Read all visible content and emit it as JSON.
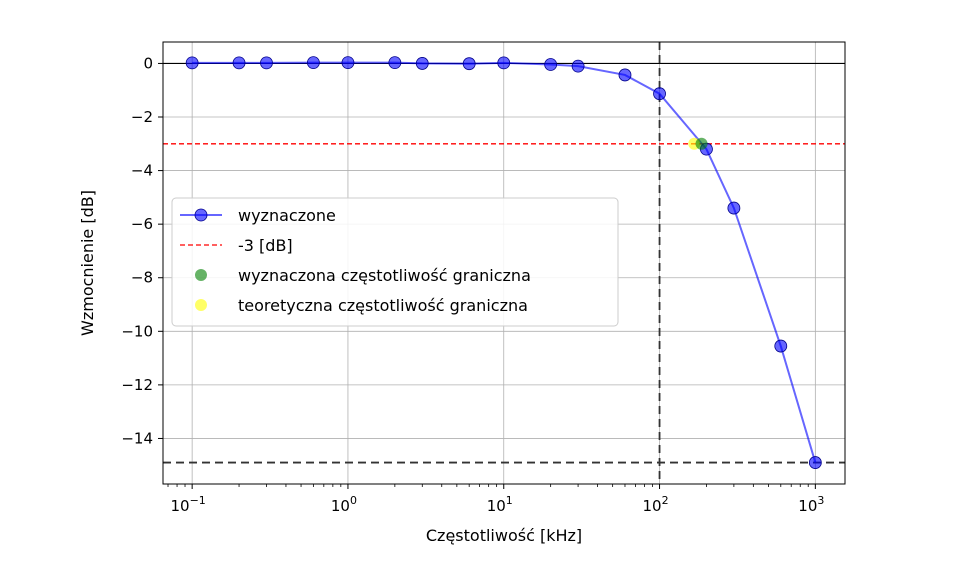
{
  "chart_data": {
    "type": "line",
    "x_scale": "log",
    "xlabel": "Częstotliwość [kHz]",
    "ylabel": "Wzmocnienie [dB]",
    "xlim": [
      0.065,
      1550
    ],
    "ylim": [
      -15.7,
      0.8
    ],
    "grid": true,
    "legend_position": "center-left",
    "x_ticks": [
      {
        "value": 0.1,
        "base": "10",
        "exp": "−1"
      },
      {
        "value": 1,
        "base": "10",
        "exp": "0"
      },
      {
        "value": 10,
        "base": "10",
        "exp": "1"
      },
      {
        "value": 100,
        "base": "10",
        "exp": "2"
      },
      {
        "value": 1000,
        "base": "10",
        "exp": "3"
      }
    ],
    "y_ticks": [
      {
        "value": 0,
        "label": "0"
      },
      {
        "value": -2,
        "label": "−2"
      },
      {
        "value": -4,
        "label": "−4"
      },
      {
        "value": -6,
        "label": "−6"
      },
      {
        "value": -8,
        "label": "−8"
      },
      {
        "value": -10,
        "label": "−10"
      },
      {
        "value": -12,
        "label": "−12"
      },
      {
        "value": -14,
        "label": "−14"
      }
    ],
    "series": [
      {
        "name": "wyznaczone",
        "color": "#0000ff",
        "x": [
          0.1,
          0.2,
          0.3,
          0.6,
          1,
          2,
          3,
          6,
          10,
          20,
          30,
          60,
          100,
          200,
          300,
          600,
          1000
        ],
        "y": [
          0.02,
          0.02,
          0.02,
          0.03,
          0.03,
          0.03,
          0.0,
          -0.01,
          0.02,
          -0.04,
          -0.1,
          -0.43,
          -1.13,
          -3.2,
          -5.4,
          -10.55,
          -14.9
        ]
      }
    ],
    "reference_lines": [
      {
        "name": "-3 [dB]",
        "orientation": "horizontal",
        "value": -3,
        "color": "#ff0000",
        "style": "dashed"
      },
      {
        "orientation": "horizontal",
        "value": 0,
        "color": "#000000",
        "style": "solid"
      },
      {
        "orientation": "horizontal",
        "value": -14.9,
        "color": "#333333",
        "style": "dashed"
      },
      {
        "orientation": "vertical",
        "value": 100,
        "color": "#333333",
        "style": "dashed"
      }
    ],
    "points": [
      {
        "name": "wyznaczona częstotliwość graniczna",
        "x": 186,
        "y": -3.0,
        "color": "#008000"
      },
      {
        "name": "teoretyczna częstotliwość graniczna",
        "x": 167,
        "y": -3.0,
        "color": "#ffff00"
      }
    ]
  }
}
